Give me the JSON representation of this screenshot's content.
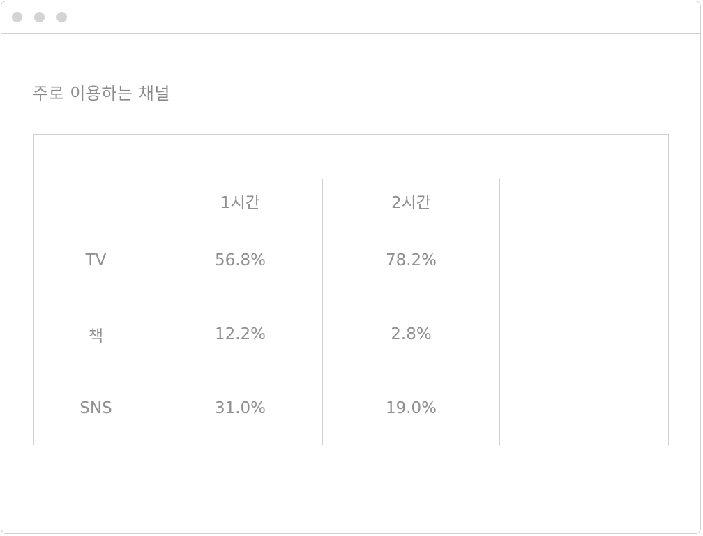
{
  "page": {
    "heading": "주로 이용하는 채널"
  },
  "table": {
    "group_header": "",
    "columns": [
      "1시간",
      "2시간",
      ""
    ],
    "rows": [
      {
        "label": "TV",
        "values": [
          "56.8%",
          "78.2%",
          ""
        ]
      },
      {
        "label": "책",
        "values": [
          "12.2%",
          "2.8%",
          ""
        ]
      },
      {
        "label": "SNS",
        "values": [
          "31.0%",
          "19.0%",
          ""
        ]
      }
    ]
  },
  "colors": {
    "border": "#cfcfcf",
    "text": "#8f8f8f",
    "window_dot": "#d4d4d4"
  }
}
